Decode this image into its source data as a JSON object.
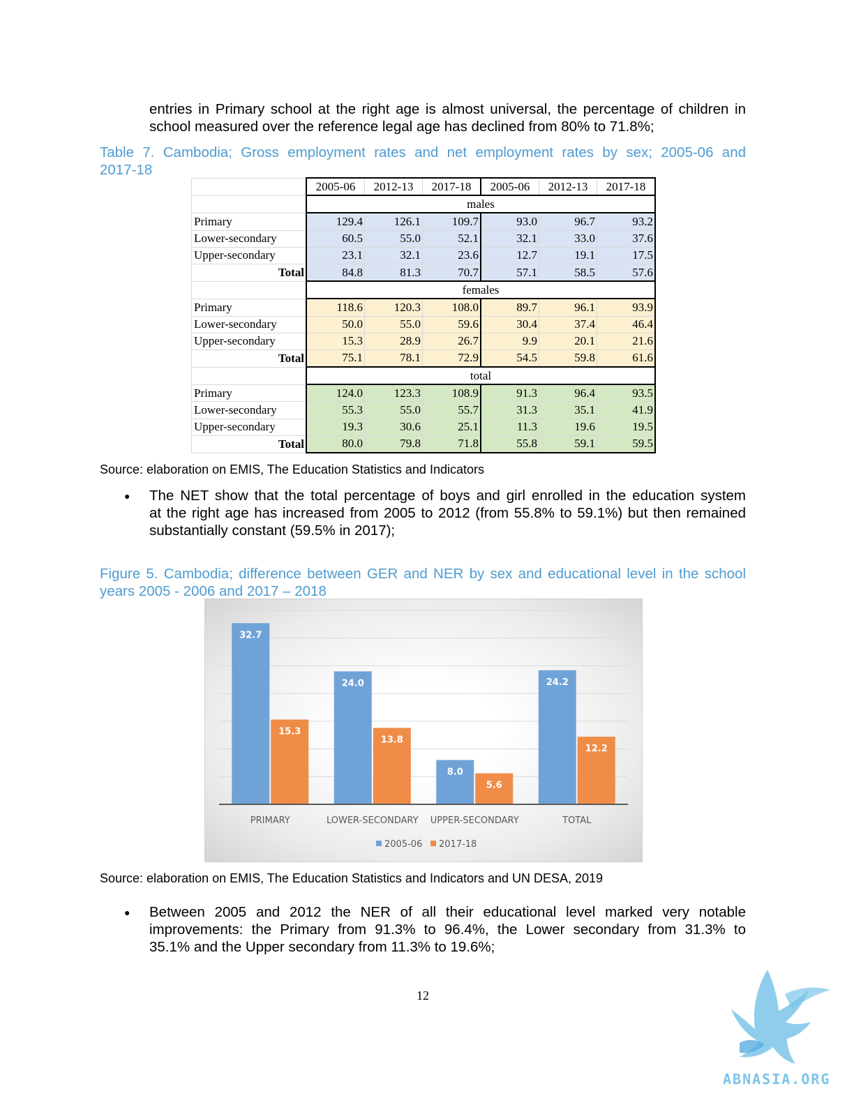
{
  "intro_text": {
    "line1": "entries in Primary school at the right age is almost universal, the percentage of children in",
    "line2": "school measured over the reference legal age has declined from 80% to 71.8%;"
  },
  "table_caption": {
    "line1": "Table 7. Cambodia; Gross employment rates and net employment rates by sex; 2005-06 and",
    "line2": "2017-18"
  },
  "table": {
    "years": [
      "2005-06",
      "2012-13",
      "2017-18",
      "2005-06",
      "2012-13",
      "2017-18"
    ],
    "sections": [
      {
        "name": "males",
        "color": "#dae3f3",
        "rows": [
          {
            "label": "Primary",
            "values": [
              "129.4",
              "126.1",
              "109.7",
              "93.0",
              "96.7",
              "93.2"
            ]
          },
          {
            "label": "Lower-secondary",
            "values": [
              "60.5",
              "55.0",
              "52.1",
              "32.1",
              "33.0",
              "37.6"
            ]
          },
          {
            "label": "Upper-secondary",
            "values": [
              "23.1",
              "32.1",
              "23.6",
              "12.7",
              "19.1",
              "17.5"
            ]
          },
          {
            "label": "Total",
            "values": [
              "84.8",
              "81.3",
              "70.7",
              "57.1",
              "58.5",
              "57.6"
            ]
          }
        ]
      },
      {
        "name": "females",
        "color": "#fdf0d0",
        "rows": [
          {
            "label": "Primary",
            "values": [
              "118.6",
              "120.3",
              "108.0",
              "89.7",
              "96.1",
              "93.9"
            ]
          },
          {
            "label": "Lower-secondary",
            "values": [
              "50.0",
              "55.0",
              "59.6",
              "30.4",
              "37.4",
              "46.4"
            ]
          },
          {
            "label": "Upper-secondary",
            "values": [
              "15.3",
              "28.9",
              "26.7",
              "9.9",
              "20.1",
              "21.6"
            ]
          },
          {
            "label": "Total",
            "values": [
              "75.1",
              "78.1",
              "72.9",
              "54.5",
              "59.8",
              "61.6"
            ]
          }
        ]
      },
      {
        "name": "total",
        "color": "#d5e8c4",
        "rows": [
          {
            "label": "Primary",
            "values": [
              "124.0",
              "123.3",
              "108.9",
              "91.3",
              "96.4",
              "93.5"
            ]
          },
          {
            "label": "Lower-secondary",
            "values": [
              "55.3",
              "55.0",
              "55.7",
              "31.3",
              "35.1",
              "41.9"
            ]
          },
          {
            "label": "Upper-secondary",
            "values": [
              "19.3",
              "30.6",
              "25.1",
              "11.3",
              "19.6",
              "19.5"
            ]
          },
          {
            "label": "Total",
            "values": [
              "80.0",
              "79.8",
              "71.8",
              "55.8",
              "59.1",
              "59.5"
            ]
          }
        ]
      }
    ]
  },
  "table_source": "Source: elaboration on EMIS, The Education Statistics and Indicators",
  "bullet1": {
    "line1": "The NET show that the total percentage of boys and girl enrolled in the education system",
    "line2": "at the right age has increased from 2005 to 2012 (from 55.8% to 59.1%) but then remained",
    "line3": "substantially constant (59.5% in 2017);"
  },
  "figure_caption": {
    "line1": "Figure 5. Cambodia; difference between GER and NER by sex and educational level in the school",
    "line2": "years 2005 - 2006 and 2017 – 2018"
  },
  "chart_data": {
    "type": "bar",
    "categories": [
      "PRIMARY",
      "LOWER-SECONDARY",
      "UPPER-SECONDARY",
      "TOTAL"
    ],
    "series": [
      {
        "name": "2005-06",
        "values": [
          32.7,
          24.0,
          8.0,
          24.2
        ],
        "color": "#6fa3d8"
      },
      {
        "name": "2017-18",
        "values": [
          15.3,
          13.8,
          5.6,
          12.2
        ],
        "color": "#ef8c48"
      }
    ],
    "ylim": [
      0,
      35
    ],
    "grid": true,
    "legend": "bottom"
  },
  "figure_source": "Source: elaboration on EMIS, The Education Statistics and Indicators and UN DESA, 2019",
  "bullet2": {
    "line1": "Between 2005 and 2012 the NER of all their educational level marked very notable",
    "line2": "improvements: the Primary from 91.3% to 96.4%, the Lower secondary from 31.3% to",
    "line3": "35.1% and the Upper secondary from 11.3% to 19.6%;"
  },
  "page_number": "12",
  "watermark": {
    "text": "ABNASIA.ORG",
    "color": "#7cc4ea"
  }
}
